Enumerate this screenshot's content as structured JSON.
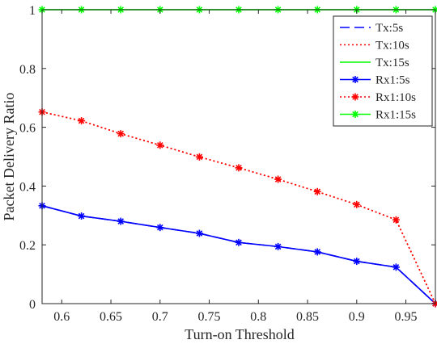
{
  "chart_data": {
    "type": "line",
    "xlabel": "Turn-on Threshold",
    "ylabel": "Packet Delivery Ratio",
    "xlim": [
      0.58,
      0.98
    ],
    "ylim": [
      0,
      1
    ],
    "xticks": [
      "0.6",
      "0.65",
      "0.7",
      "0.75",
      "0.8",
      "0.85",
      "0.9",
      "0.95"
    ],
    "yticks": [
      "0",
      "0.2",
      "0.4",
      "0.6",
      "0.8",
      "1"
    ],
    "grid": false,
    "legend_position": "top-right",
    "x": [
      0.58,
      0.62,
      0.66,
      0.7,
      0.74,
      0.78,
      0.82,
      0.86,
      0.9,
      0.94,
      0.98
    ],
    "series": [
      {
        "name": "Tx:5s",
        "color": "#0000ff",
        "dash": "dashed",
        "marker": "none",
        "values": [
          0.333,
          0.298,
          0.28,
          0.259,
          0.239,
          0.208,
          0.194,
          0.176,
          0.144,
          0.124,
          0.0
        ]
      },
      {
        "name": "Tx:10s",
        "color": "#ff0000",
        "dash": "dotted",
        "marker": "none",
        "values": [
          0.652,
          0.622,
          0.578,
          0.539,
          0.499,
          0.462,
          0.423,
          0.381,
          0.337,
          0.285,
          0.0
        ]
      },
      {
        "name": "Tx:15s",
        "color": "#00ff00",
        "dash": "solid",
        "marker": "none",
        "values": [
          1,
          1,
          1,
          1,
          1,
          1,
          1,
          1,
          1,
          1,
          1
        ]
      },
      {
        "name": "Rx1:5s",
        "color": "#0000ff",
        "dash": "solid",
        "marker": "star",
        "values": [
          0.333,
          0.298,
          0.28,
          0.259,
          0.239,
          0.208,
          0.194,
          0.176,
          0.144,
          0.124,
          0.0
        ]
      },
      {
        "name": "Rx1:10s",
        "color": "#ff0000",
        "dash": "dotted",
        "marker": "star",
        "values": [
          0.652,
          0.622,
          0.578,
          0.539,
          0.499,
          0.462,
          0.423,
          0.381,
          0.337,
          0.285,
          0.0
        ]
      },
      {
        "name": "Rx1:15s",
        "color": "#00ff00",
        "dash": "solid",
        "marker": "star",
        "values": [
          1,
          1,
          1,
          1,
          1,
          1,
          1,
          1,
          1,
          1,
          1
        ]
      }
    ]
  }
}
